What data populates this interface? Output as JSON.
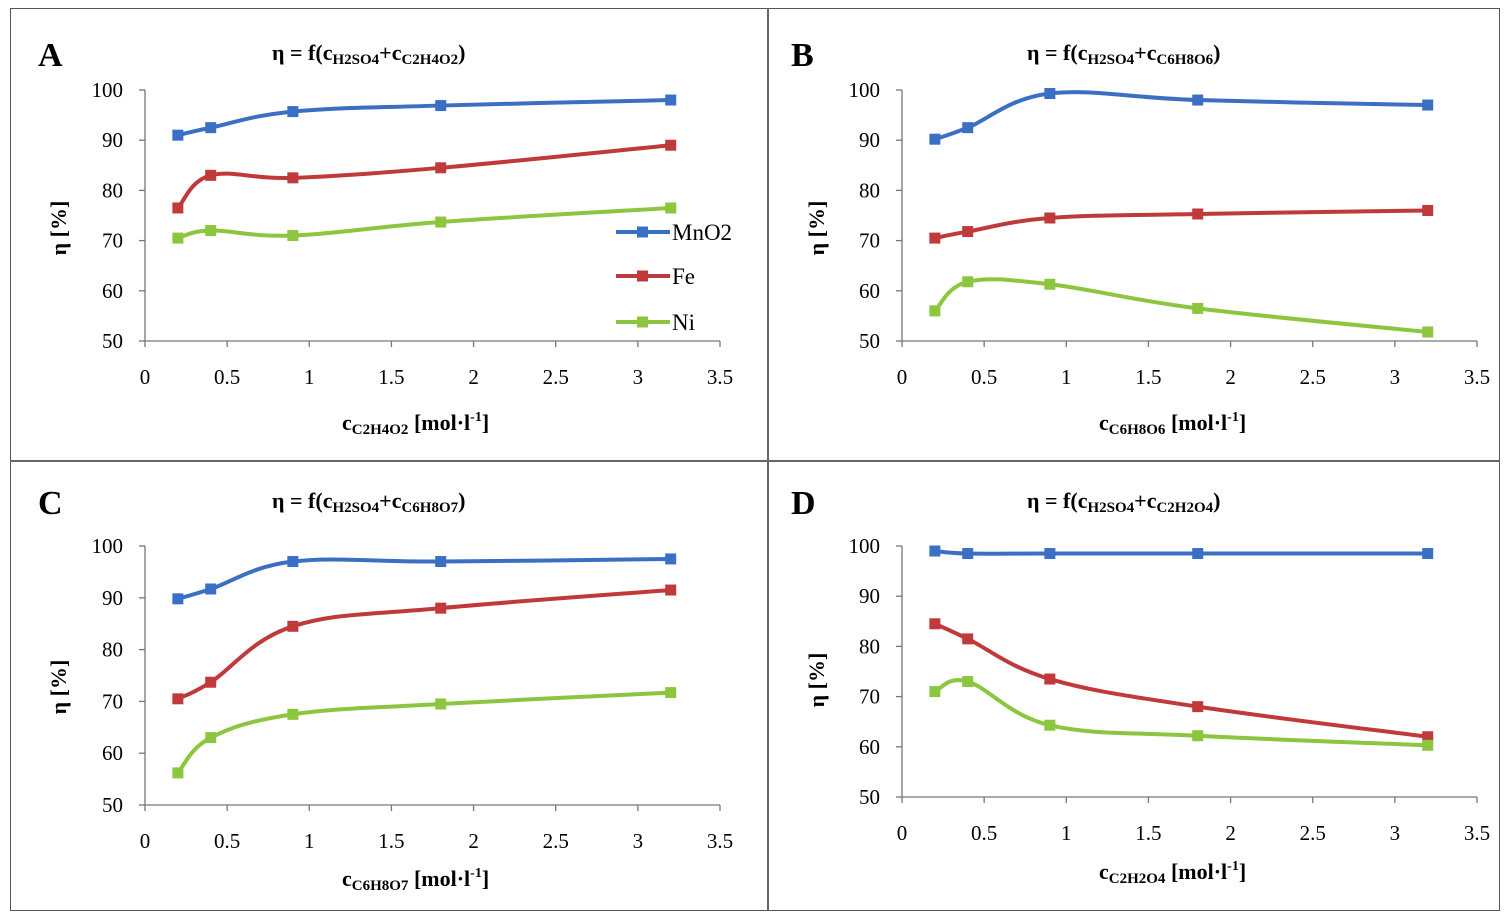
{
  "panels": [
    {
      "letter": "A",
      "title": {
        "prefix": "η = f(",
        "s1": "c",
        "s1sub": "H2SO4",
        "plus": "+",
        "s2": "c",
        "s2sub": "C2H4O2",
        "suffix": ")"
      },
      "xlabel": {
        "main": "c",
        "sub": "C2H4O2",
        "unit": "[mol·l",
        "exp": "-1",
        "close": "]"
      },
      "ylabel": "η [%]",
      "legend": true
    },
    {
      "letter": "B",
      "title": {
        "prefix": "η = f(",
        "s1": "c",
        "s1sub": "H2SO4",
        "plus": "+",
        "s2": "c",
        "s2sub": "C6H8O6",
        "suffix": ")"
      },
      "xlabel": {
        "main": "c",
        "sub": "C6H8O6",
        "unit": "[mol·l",
        "exp": "-1",
        "close": "]"
      },
      "ylabel": "η [%]",
      "legend": false
    },
    {
      "letter": "C",
      "title": {
        "prefix": "η = f(",
        "s1": "c",
        "s1sub": "H2SO4",
        "plus": "+",
        "s2": "c",
        "s2sub": "C6H8O7",
        "suffix": ")"
      },
      "xlabel": {
        "main": "c",
        "sub": "C6H8O7",
        "unit": "[mol·l",
        "exp": "-1",
        "close": "]"
      },
      "ylabel": "η [%]",
      "legend": false
    },
    {
      "letter": "D",
      "title": {
        "prefix": "η = f(",
        "s1": "c",
        "s1sub": "H2SO4",
        "plus": "+",
        "s2": "c",
        "s2sub": "C2H2O4",
        "suffix": ")"
      },
      "xlabel": {
        "main": "c",
        "sub": "C2H2O4",
        "unit": "[mol·l",
        "exp": "-1",
        "close": "]"
      },
      "ylabel": "η [%]",
      "legend": false
    }
  ],
  "chart_data": [
    {
      "type": "line",
      "x": [
        0.2,
        0.4,
        0.9,
        1.8,
        3.2
      ],
      "xlim": [
        0,
        3.5
      ],
      "ylim": [
        50,
        100
      ],
      "xticks": [
        "0",
        "0.5",
        "1",
        "1.5",
        "2",
        "2.5",
        "3",
        "3.5"
      ],
      "yticks": [
        "50",
        "60",
        "70",
        "80",
        "90",
        "100"
      ],
      "legend_position": "right",
      "series": [
        {
          "name": "MnO2",
          "color": "#3a6fc4",
          "values": [
            91,
            92.5,
            95.7,
            96.9,
            98
          ]
        },
        {
          "name": "Fe",
          "color": "#c0393b",
          "values": [
            76.5,
            83,
            82.5,
            84.5,
            89
          ]
        },
        {
          "name": "Ni",
          "color": "#8cc63f",
          "values": [
            70.5,
            72,
            71,
            73.7,
            76.5
          ]
        }
      ]
    },
    {
      "type": "line",
      "x": [
        0.2,
        0.4,
        0.9,
        1.8,
        3.2
      ],
      "xlim": [
        0,
        3.5
      ],
      "ylim": [
        50,
        100
      ],
      "xticks": [
        "0",
        "0.5",
        "1",
        "1.5",
        "2",
        "2.5",
        "3",
        "3.5"
      ],
      "yticks": [
        "50",
        "60",
        "70",
        "80",
        "90",
        "100"
      ],
      "series": [
        {
          "color": "#3a6fc4",
          "values": [
            90.2,
            92.5,
            99.3,
            98,
            97
          ]
        },
        {
          "color": "#c0393b",
          "values": [
            70.5,
            71.8,
            74.5,
            75.3,
            76
          ]
        },
        {
          "color": "#8cc63f",
          "values": [
            56,
            61.8,
            61.3,
            56.5,
            51.8
          ]
        }
      ]
    },
    {
      "type": "line",
      "x": [
        0.2,
        0.4,
        0.9,
        1.8,
        3.2
      ],
      "xlim": [
        0,
        3.5
      ],
      "ylim": [
        50,
        100
      ],
      "xticks": [
        "0",
        "0.5",
        "1",
        "1.5",
        "2",
        "2.5",
        "3",
        "3.5"
      ],
      "yticks": [
        "50",
        "60",
        "70",
        "80",
        "90",
        "100"
      ],
      "series": [
        {
          "color": "#3a6fc4",
          "values": [
            89.8,
            91.7,
            97,
            97,
            97.5
          ]
        },
        {
          "color": "#c0393b",
          "values": [
            70.5,
            73.7,
            84.5,
            88,
            91.5
          ]
        },
        {
          "color": "#8cc63f",
          "values": [
            56.2,
            63,
            67.5,
            69.5,
            71.7
          ]
        }
      ]
    },
    {
      "type": "line",
      "x": [
        0.2,
        0.4,
        0.9,
        1.8,
        3.2
      ],
      "xlim": [
        0,
        3.5
      ],
      "ylim": [
        50,
        100
      ],
      "xticks": [
        "0",
        "0.5",
        "1",
        "1.5",
        "2",
        "2.5",
        "3",
        "3.5"
      ],
      "yticks": [
        "50",
        "60",
        "70",
        "80",
        "90",
        "100"
      ],
      "series": [
        {
          "color": "#3a6fc4",
          "values": [
            99,
            98.5,
            98.5,
            98.5,
            98.5
          ]
        },
        {
          "color": "#c0393b",
          "values": [
            84.5,
            81.5,
            73.5,
            68,
            62
          ]
        },
        {
          "color": "#8cc63f",
          "values": [
            71,
            73,
            64.3,
            62.2,
            60.3
          ]
        }
      ]
    }
  ]
}
